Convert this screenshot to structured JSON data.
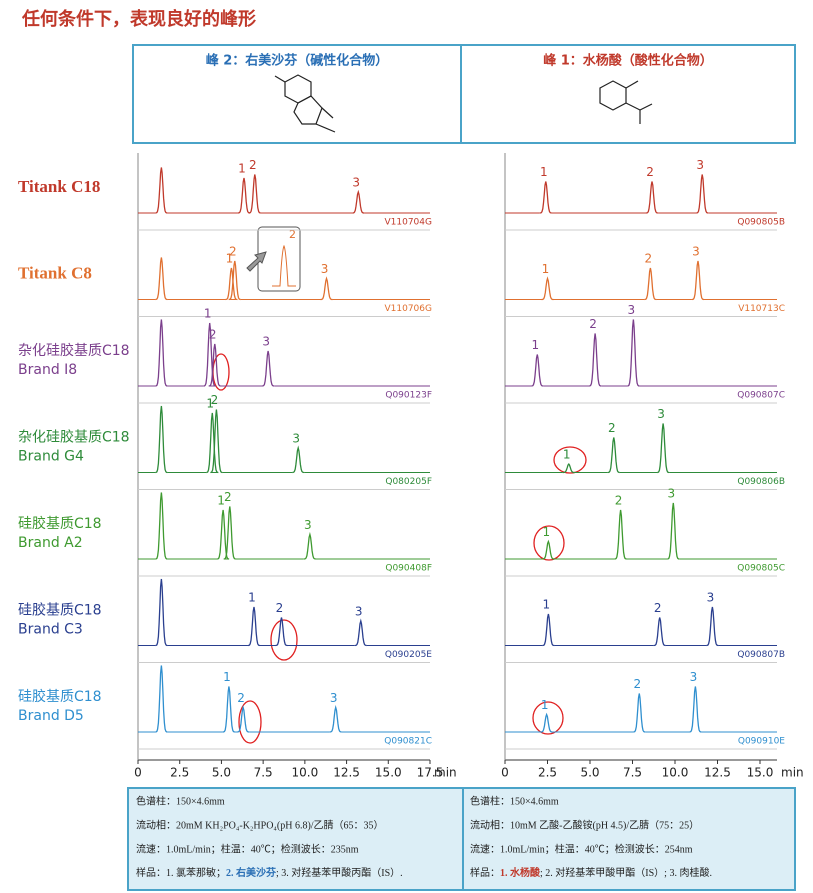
{
  "title": "任何条件下，表现良好的峰形",
  "headers": [
    "峰 2：右美沙芬（碱性化合物）",
    "峰 1：水杨酸（酸性化合物）"
  ],
  "rows": [
    {
      "label": "Titank C18",
      "color": "#c0392b"
    },
    {
      "label": "Titank C8",
      "color": "#e07030"
    },
    {
      "label": "杂化硅胶基质C18",
      "brand": "Brand I8",
      "color": "#7b3f8c"
    },
    {
      "label": "杂化硅胶基质C18",
      "brand": "Brand G4",
      "color": "#2e8b3a"
    },
    {
      "label": "硅胶基质C18",
      "brand": "Brand A2",
      "color": "#3f9a30"
    },
    {
      "label": "硅胶基质C18",
      "brand": "Brand C3",
      "color": "#2a3f8f"
    },
    {
      "label": "硅胶基质C18",
      "brand": "Brand D5",
      "color": "#2f8fcf"
    }
  ],
  "inset_label": "2",
  "chart_data": [
    {
      "type": "line",
      "xlim": [
        0,
        17.5
      ],
      "ylim": [
        0,
        1
      ],
      "xlabel": "min",
      "xticks": [
        0,
        2.5,
        {
          "value": 5,
          "label": "5.0"
        },
        7.5,
        {
          "value": 10,
          "label": "10.0"
        },
        12.5,
        {
          "value": 15,
          "label": "15.0"
        },
        17.5
      ],
      "series": [
        {
          "code": "V110704G",
          "color": "#c0392b",
          "x": [
            1.4,
            6.35,
            7.0,
            13.2
          ],
          "y": [
            0.65,
            0.5,
            0.55,
            0.3
          ],
          "labels": [
            null,
            "1",
            "2",
            "3"
          ]
        },
        {
          "code": "V110706G",
          "color": "#e07030",
          "x": [
            1.4,
            5.6,
            5.8,
            11.3
          ],
          "y": [
            0.6,
            0.45,
            0.55,
            0.3
          ],
          "labels": [
            null,
            "1",
            "2",
            "3"
          ]
        },
        {
          "code": "Q090123F",
          "color": "#7b3f8c",
          "x": [
            1.4,
            4.3,
            4.6,
            7.8
          ],
          "y": [
            0.95,
            0.9,
            0.6,
            0.5
          ],
          "labels": [
            null,
            "1",
            "2",
            "3"
          ]
        },
        {
          "code": "Q080205F",
          "color": "#2e8b3a",
          "x": [
            1.4,
            4.45,
            4.7,
            9.6
          ],
          "y": [
            0.95,
            0.85,
            0.9,
            0.35
          ],
          "labels": [
            null,
            "1",
            "2",
            "3"
          ]
        },
        {
          "code": "Q090408F",
          "color": "#3f9a30",
          "x": [
            1.4,
            5.1,
            5.5,
            10.3
          ],
          "y": [
            0.95,
            0.7,
            0.75,
            0.35
          ],
          "labels": [
            null,
            "1",
            "2",
            "3"
          ]
        },
        {
          "code": "Q090205E",
          "color": "#2a3f8f",
          "x": [
            1.4,
            6.95,
            8.6,
            13.35
          ],
          "y": [
            0.95,
            0.55,
            0.4,
            0.35
          ],
          "labels": [
            null,
            "1",
            "2",
            "3"
          ]
        },
        {
          "code": "Q090821C",
          "color": "#2f8fcf",
          "x": [
            1.4,
            5.45,
            6.3,
            11.85
          ],
          "y": [
            0.95,
            0.65,
            0.35,
            0.35
          ],
          "labels": [
            null,
            "1",
            "2",
            "3"
          ]
        }
      ]
    },
    {
      "type": "line",
      "xlim": [
        0,
        16
      ],
      "ylim": [
        0,
        1
      ],
      "xlabel": "min",
      "xticks": [
        0,
        2.5,
        {
          "value": 5,
          "label": "5.0"
        },
        7.5,
        {
          "value": 10,
          "label": "10.0"
        },
        12.5,
        {
          "value": 15,
          "label": "15.0"
        }
      ],
      "series": [
        {
          "code": "Q090805B",
          "color": "#c0392b",
          "x": [
            2.4,
            8.65,
            11.6
          ],
          "y": [
            0.45,
            0.45,
            0.55
          ],
          "labels": [
            "1",
            "2",
            "3"
          ]
        },
        {
          "code": "V110713C",
          "color": "#e07030",
          "x": [
            2.5,
            8.55,
            11.35
          ],
          "y": [
            0.3,
            0.45,
            0.55
          ],
          "labels": [
            "1",
            "2",
            "3"
          ]
        },
        {
          "code": "Q090807C",
          "color": "#7b3f8c",
          "x": [
            1.9,
            5.3,
            7.55
          ],
          "y": [
            0.45,
            0.75,
            0.95
          ],
          "labels": [
            "1",
            "2",
            "3"
          ]
        },
        {
          "code": "Q090806B",
          "color": "#2e8b3a",
          "x": [
            3.75,
            6.4,
            9.3
          ],
          "y": [
            0.12,
            0.5,
            0.7
          ],
          "labels": [
            "1",
            "2",
            "3"
          ]
        },
        {
          "code": "Q090805C",
          "color": "#3f9a30",
          "x": [
            2.55,
            6.8,
            9.9
          ],
          "y": [
            0.25,
            0.7,
            0.8
          ],
          "labels": [
            "1",
            "2",
            "3"
          ]
        },
        {
          "code": "Q090807B",
          "color": "#2a3f8f",
          "x": [
            2.55,
            9.1,
            12.2
          ],
          "y": [
            0.45,
            0.4,
            0.55
          ],
          "labels": [
            "1",
            "2",
            "3"
          ]
        },
        {
          "code": "Q090910E",
          "color": "#2f8fcf",
          "x": [
            2.45,
            7.9,
            11.2
          ],
          "y": [
            0.25,
            0.55,
            0.65
          ],
          "labels": [
            "1",
            "2",
            "3"
          ]
        }
      ]
    }
  ],
  "notes": [
    {
      "lines": [
        "色谱柱：150×4.6mm",
        "流动相：20mM KH₂PO₄-K₂HPO₄(pH 6.8)/乙腈（65：35）",
        "流速：1.0mL/min；柱温：40℃；检测波长：235nm"
      ],
      "sample": [
        "样品：1. 氯苯那敏；",
        "2. 右美沙芬",
        "; 3. 对羟基苯甲酸丙酯（IS）."
      ]
    },
    {
      "lines": [
        "色谱柱：150×4.6mm",
        "流动相：10mM 乙酸-乙酸铵(pH 4.5)/乙腈（75：25）",
        "流速：1.0mL/min；柱温：40℃；检测波长：254nm"
      ],
      "sample": [
        "样品：",
        "1. 水杨酸",
        "; 2. 对羟基苯甲酸甲酯（IS）; 3. 肉桂酸."
      ]
    }
  ]
}
